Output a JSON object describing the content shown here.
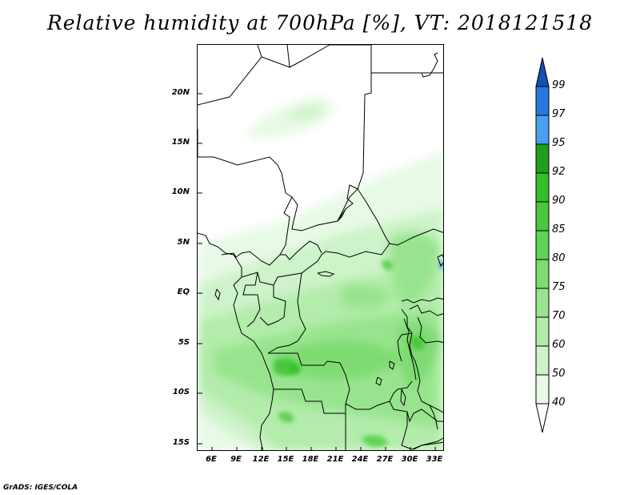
{
  "title": "Relative humidity at 700hPa [%], VT: 2018121518",
  "credit": "GrADS: IGES/COLA",
  "latitude_labels": [
    "20N",
    "15N",
    "10N",
    "5N",
    "EQ",
    "5S",
    "10S",
    "15S"
  ],
  "longitude_labels": [
    "6E",
    "9E",
    "12E",
    "15E",
    "18E",
    "21E",
    "24E",
    "27E",
    "30E",
    "33E"
  ],
  "colorbar": {
    "labels": [
      "40",
      "50",
      "60",
      "70",
      "75",
      "80",
      "85",
      "90",
      "92",
      "95",
      "97",
      "99"
    ],
    "colors": [
      "#ffffff",
      "#e8f9e6",
      "#cdf3c8",
      "#b3ecab",
      "#98e48e",
      "#7edb72",
      "#62d257",
      "#49c83e",
      "#34be2a",
      "#1fa01a",
      "#4aa0f0",
      "#2878e0",
      "#1450b0"
    ]
  }
}
